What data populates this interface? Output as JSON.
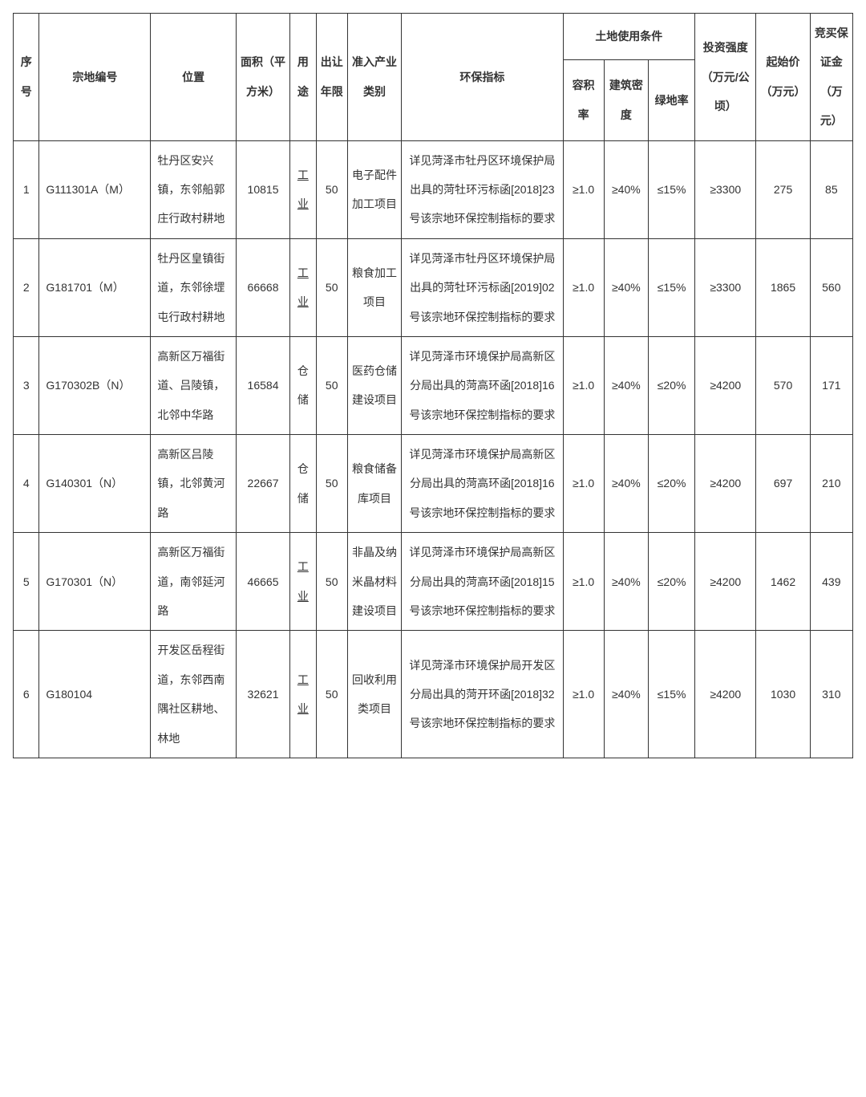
{
  "table": {
    "headers": {
      "seq": "序号",
      "parcel_no": "宗地编号",
      "location": "位置",
      "area": "面积（平方米）",
      "use": "用途",
      "term": "出让年限",
      "category": "准入产业类别",
      "env": "环保指标",
      "land_cond_group": "土地使用条件",
      "far": "容积率",
      "build_density": "建筑密度",
      "green_rate": "绿地率",
      "invest_intensity": "投资强度（万元/公顷）",
      "start_price": "起始价（万元）",
      "deposit": "竞买保证金（万元）"
    },
    "rows": [
      {
        "seq": "1",
        "parcel_no": "G111301A（M）",
        "location": "牡丹区安兴镇，东邻船郭庄行政村耕地",
        "area": "10815",
        "use": "工业",
        "use_underline": true,
        "term": "50",
        "category": "电子配件加工项目",
        "env": "详见菏泽市牡丹区环境保护局出具的菏牡环污标函[2018]23 号该宗地环保控制指标的要求",
        "far": "≥1.0",
        "build_density": "≥40%",
        "green_rate": "≤15%",
        "invest_intensity": "≥3300",
        "start_price": "275",
        "deposit": "85"
      },
      {
        "seq": "2",
        "parcel_no": "G181701（M）",
        "location": "牡丹区皇镇街道，东邻徐堽屯行政村耕地",
        "area": "66668",
        "use": "工业",
        "use_underline": true,
        "term": "50",
        "category": "粮食加工项目",
        "env": "详见菏泽市牡丹区环境保护局出具的菏牡环污标函[2019]02 号该宗地环保控制指标的要求",
        "far": "≥1.0",
        "build_density": "≥40%",
        "green_rate": "≤15%",
        "invest_intensity": "≥3300",
        "start_price": "1865",
        "deposit": "560"
      },
      {
        "seq": "3",
        "parcel_no": "G170302B（N）",
        "location": "高新区万福街道、吕陵镇，北邻中华路",
        "area": "16584",
        "use": "仓储",
        "use_underline": false,
        "term": "50",
        "category": "医药仓储建设项目",
        "env": "详见菏泽市环境保护局高新区分局出具的菏高环函[2018]16 号该宗地环保控制指标的要求",
        "far": "≥1.0",
        "build_density": "≥40%",
        "green_rate": "≤20%",
        "invest_intensity": "≥4200",
        "start_price": "570",
        "deposit": "171"
      },
      {
        "seq": "4",
        "parcel_no": "G140301（N）",
        "location": "高新区吕陵镇，北邻黄河路",
        "area": "22667",
        "use": "仓储",
        "use_underline": false,
        "term": "50",
        "category": "粮食储备库项目",
        "env": "详见菏泽市环境保护局高新区分局出具的菏高环函[2018]16 号该宗地环保控制指标的要求",
        "far": "≥1.0",
        "build_density": "≥40%",
        "green_rate": "≤20%",
        "invest_intensity": "≥4200",
        "start_price": "697",
        "deposit": "210"
      },
      {
        "seq": "5",
        "parcel_no": "G170301（N）",
        "location": "高新区万福街道，南邻延河路",
        "area": "46665",
        "use": "工业",
        "use_underline": true,
        "term": "50",
        "category": "非晶及纳米晶材料建设项目",
        "env": "详见菏泽市环境保护局高新区分局出具的菏高环函[2018]15 号该宗地环保控制指标的要求",
        "far": "≥1.0",
        "build_density": "≥40%",
        "green_rate": "≤20%",
        "invest_intensity": "≥4200",
        "start_price": "1462",
        "deposit": "439"
      },
      {
        "seq": "6",
        "parcel_no": "G180104",
        "location": "开发区岳程街道，东邻西南隅社区耕地、林地",
        "area": "32621",
        "use": "工业",
        "use_underline": true,
        "term": "50",
        "category": "回收利用类项目",
        "env": "详见菏泽市环境保护局开发区分局出具的菏开环函[2018]32 号该宗地环保控制指标的要求",
        "far": "≥1.0",
        "build_density": "≥40%",
        "green_rate": "≤15%",
        "invest_intensity": "≥4200",
        "start_price": "1030",
        "deposit": "310"
      }
    ]
  }
}
